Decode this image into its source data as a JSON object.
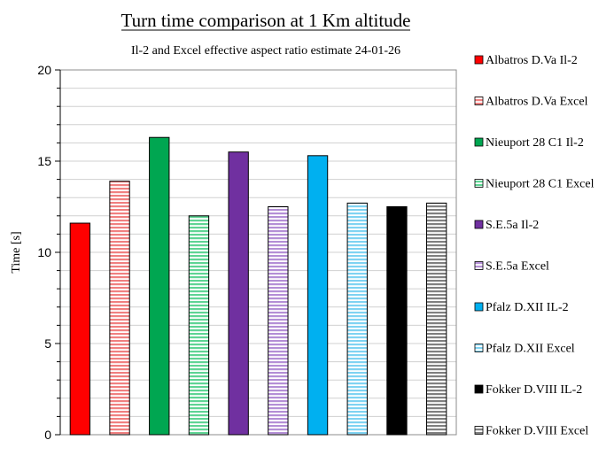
{
  "chart_data": {
    "type": "bar",
    "title": "Turn time comparison at 1 Km altitude",
    "subtitle": "Il-2 and Excel effective aspect ratio estimate 24-01-26",
    "xlabel": "",
    "ylabel": "Time [s]",
    "ylim": [
      0,
      20
    ],
    "yticks": [
      0,
      5,
      10,
      15,
      20
    ],
    "grid": true,
    "legend_position": "right",
    "categories": [
      "Albatros D.Va Il-2",
      "Albatros D.Va Excel",
      "Nieuport 28 C1 Il-2",
      "Nieuport 28 C1 Excel",
      "S.E.5a Il-2",
      "S.E.5a Excel",
      "Pfalz D.XII IL-2",
      "Pfalz D.XII Excel",
      "Fokker D.VIII IL-2",
      "Fokker D.VIII Excel"
    ],
    "values": [
      11.6,
      13.9,
      16.3,
      12.0,
      15.5,
      12.5,
      15.3,
      12.7,
      12.5,
      12.7
    ],
    "colors": [
      "#ff0000",
      "#f08080",
      "#00a651",
      "#5fd494",
      "#7030a0",
      "#b48fd6",
      "#00b0f0",
      "#7fd3f2",
      "#000000",
      "#808080"
    ],
    "patterns": [
      "solid",
      "hstripe",
      "solid",
      "hstripe",
      "solid",
      "hstripe",
      "solid",
      "hstripe",
      "solid",
      "hstripe"
    ]
  }
}
